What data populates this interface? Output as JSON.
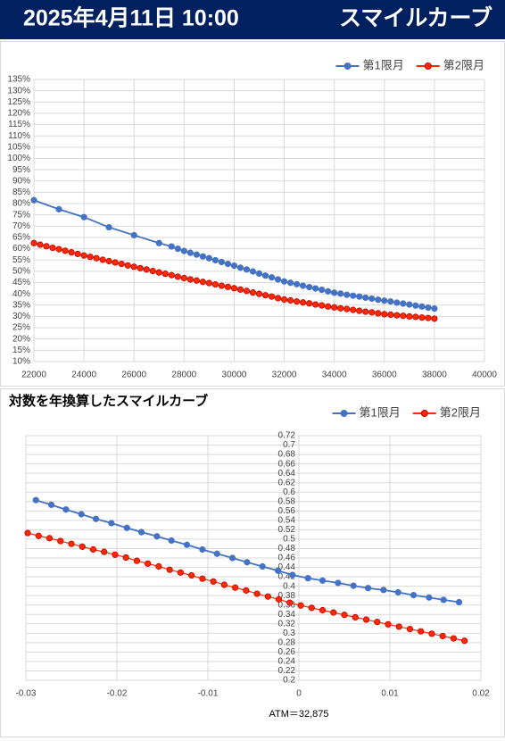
{
  "header": {
    "date": "2025年4月11日 10:00",
    "title": "スマイルカーブ"
  },
  "chart_data": [
    {
      "type": "line",
      "legend": "top-right",
      "grid": true,
      "xlim": [
        22000,
        40000
      ],
      "xticks": [
        22000,
        24000,
        26000,
        28000,
        30000,
        32000,
        34000,
        36000,
        38000,
        40000
      ],
      "ylim": [
        10,
        135
      ],
      "yticks": [
        {
          "value": 10,
          "label": "10%"
        },
        {
          "value": 15,
          "label": "15%"
        },
        {
          "value": 20,
          "label": "20%"
        },
        {
          "value": 25,
          "label": "25%"
        },
        {
          "value": 30,
          "label": "30%"
        },
        {
          "value": 35,
          "label": "35%"
        },
        {
          "value": 40,
          "label": "40%"
        },
        {
          "value": 45,
          "label": "45%"
        },
        {
          "value": 50,
          "label": "50%"
        },
        {
          "value": 55,
          "label": "55%"
        },
        {
          "value": 60,
          "label": "60%"
        },
        {
          "value": 65,
          "label": "65%"
        },
        {
          "value": 70,
          "label": "70%"
        },
        {
          "value": 75,
          "label": "75%"
        },
        {
          "value": 80,
          "label": "80%"
        },
        {
          "value": 85,
          "label": "85%"
        },
        {
          "value": 90,
          "label": "90%"
        },
        {
          "value": 95,
          "label": "95%"
        },
        {
          "value": 100,
          "label": "100%"
        },
        {
          "value": 105,
          "label": "105%"
        },
        {
          "value": 110,
          "label": "110%"
        },
        {
          "value": 115,
          "label": "115%"
        },
        {
          "value": 120,
          "label": "120%"
        },
        {
          "value": 125,
          "label": "125%"
        },
        {
          "value": 130,
          "label": "130%"
        },
        {
          "value": 135,
          "label": "135%"
        }
      ],
      "series": [
        {
          "name": "第1限月",
          "color": "#4472c4",
          "x": [
            22000,
            23000,
            24000,
            25000,
            26000,
            27000,
            27500,
            27750,
            28000,
            28250,
            28500,
            28750,
            29000,
            29250,
            29500,
            29750,
            30000,
            30250,
            30500,
            30750,
            31000,
            31250,
            31500,
            31750,
            32000,
            32250,
            32500,
            32750,
            33000,
            33250,
            33500,
            33750,
            34000,
            34250,
            34500,
            34750,
            35000,
            35250,
            35500,
            35750,
            36000,
            36250,
            36500,
            36750,
            37000,
            37250,
            37500,
            37750,
            38000
          ],
          "values": [
            81.5,
            77.5,
            74,
            69.5,
            66,
            62.5,
            61,
            60,
            59,
            58.2,
            57.4,
            56.6,
            55.8,
            54.9,
            54.1,
            53.3,
            52.5,
            51.6,
            50.8,
            49.9,
            49,
            48.1,
            47.3,
            46.4,
            45.5,
            44.9,
            44.3,
            43.6,
            43,
            42.4,
            41.8,
            41.1,
            40.5,
            40.1,
            39.6,
            39.2,
            38.8,
            38.3,
            37.9,
            37.4,
            37,
            36.6,
            36.1,
            35.7,
            35.3,
            34.8,
            34.4,
            33.9,
            33.5
          ]
        },
        {
          "name": "第2限月",
          "color": "#ff2a00",
          "x": [
            22000,
            22250,
            22500,
            22750,
            23000,
            23250,
            23500,
            23750,
            24000,
            24250,
            24500,
            24750,
            25000,
            25250,
            25500,
            25750,
            26000,
            26250,
            26500,
            26750,
            27000,
            27250,
            27500,
            27750,
            28000,
            28250,
            28500,
            28750,
            29000,
            29250,
            29500,
            29750,
            30000,
            30250,
            30500,
            30750,
            31000,
            31250,
            31500,
            31750,
            32000,
            32250,
            32500,
            32750,
            33000,
            33250,
            33500,
            33750,
            34000,
            34250,
            34500,
            34750,
            35000,
            35250,
            35500,
            35750,
            36000,
            36250,
            36500,
            36750,
            37000,
            37250,
            37500,
            37750,
            38000
          ],
          "values": [
            62.5,
            61.8,
            61.1,
            60.4,
            59.8,
            59.1,
            58.4,
            57.7,
            57,
            56.4,
            55.8,
            55.1,
            54.5,
            53.9,
            53.3,
            52.6,
            52,
            51.4,
            50.8,
            50.1,
            49.5,
            48.9,
            48.3,
            47.6,
            47,
            46.4,
            45.9,
            45.3,
            44.8,
            44.2,
            43.6,
            43.1,
            42.5,
            41.9,
            41.3,
            40.6,
            40,
            39.4,
            38.8,
            38.1,
            37.5,
            37.1,
            36.6,
            36.2,
            35.8,
            35.3,
            34.9,
            34.4,
            34,
            33.6,
            33.3,
            32.9,
            32.5,
            32.1,
            31.8,
            31.4,
            31,
            30.8,
            30.5,
            30.3,
            30,
            29.8,
            29.5,
            29.3,
            29
          ]
        }
      ]
    },
    {
      "type": "line",
      "title": "対数を年換算したスマイルカーブ",
      "x_label": "ATM＝32,875",
      "legend": "top-right",
      "grid": true,
      "xlim": [
        -0.03,
        0.02
      ],
      "xticks": [
        -0.03,
        -0.02,
        -0.01,
        0,
        0.01,
        0.02
      ],
      "ylim": [
        0.2,
        0.72
      ],
      "yticks": [
        0.2,
        0.22,
        0.24,
        0.26,
        0.28,
        0.3,
        0.32,
        0.34,
        0.36,
        0.38,
        0.4,
        0.42,
        0.44,
        0.46,
        0.48,
        0.5,
        0.52,
        0.54,
        0.56,
        0.58,
        0.6,
        0.62,
        0.64,
        0.66,
        0.68,
        0.7,
        0.72
      ],
      "series": [
        {
          "name": "第1限月",
          "color": "#4472c4",
          "x": [
            -0.0289,
            -0.0272,
            -0.0256,
            -0.0239,
            -0.0223,
            -0.0206,
            -0.0189,
            -0.0173,
            -0.0156,
            -0.014,
            -0.0123,
            -0.0106,
            -0.009,
            -0.0073,
            -0.0057,
            -0.004,
            -0.0023,
            -0.0007,
            0.001,
            0.0026,
            0.0043,
            0.006,
            0.0076,
            0.0093,
            0.0109,
            0.0126,
            0.0143,
            0.0159,
            0.0176
          ],
          "values": [
            0.583,
            0.573,
            0.563,
            0.553,
            0.543,
            0.534,
            0.524,
            0.515,
            0.506,
            0.497,
            0.488,
            0.478,
            0.469,
            0.46,
            0.451,
            0.442,
            0.433,
            0.424,
            0.417,
            0.412,
            0.407,
            0.401,
            0.396,
            0.392,
            0.387,
            0.381,
            0.376,
            0.371,
            0.366
          ]
        },
        {
          "name": "第2限月",
          "color": "#ff2a00",
          "x": [
            -0.0298,
            -0.0286,
            -0.0274,
            -0.0262,
            -0.025,
            -0.0238,
            -0.0226,
            -0.0214,
            -0.0202,
            -0.019,
            -0.0178,
            -0.0166,
            -0.0154,
            -0.0142,
            -0.013,
            -0.0118,
            -0.0106,
            -0.0094,
            -0.0082,
            -0.007,
            -0.0058,
            -0.0046,
            -0.0034,
            -0.0022,
            -0.001,
            0.0002,
            0.0014,
            0.0026,
            0.0038,
            0.005,
            0.0062,
            0.0074,
            0.0086,
            0.0098,
            0.011,
            0.0122,
            0.0134,
            0.0146,
            0.0158,
            0.017,
            0.0182
          ],
          "values": [
            0.513,
            0.507,
            0.502,
            0.496,
            0.49,
            0.484,
            0.478,
            0.473,
            0.467,
            0.461,
            0.454,
            0.448,
            0.442,
            0.435,
            0.429,
            0.423,
            0.416,
            0.41,
            0.403,
            0.397,
            0.391,
            0.384,
            0.378,
            0.372,
            0.365,
            0.359,
            0.354,
            0.349,
            0.344,
            0.339,
            0.334,
            0.329,
            0.324,
            0.319,
            0.314,
            0.309,
            0.304,
            0.299,
            0.294,
            0.289,
            0.284
          ]
        }
      ]
    }
  ]
}
